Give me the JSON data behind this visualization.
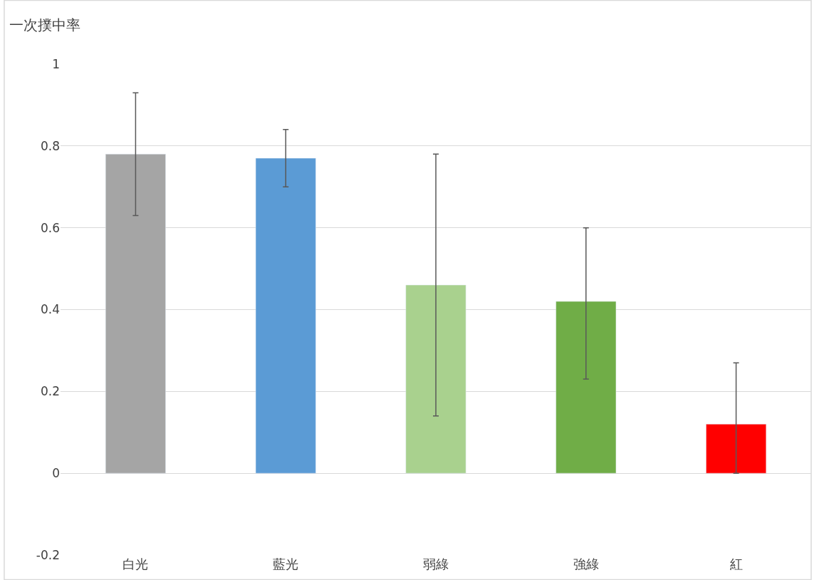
{
  "chart_data": {
    "type": "bar",
    "ylabel": "一次撲中率",
    "categories": [
      "白光",
      "藍光",
      "弱綠",
      "強綠",
      "紅"
    ],
    "values": [
      0.78,
      0.77,
      0.46,
      0.42,
      0.12
    ],
    "colors": [
      "#a5a5a5",
      "#5b9bd5",
      "#a9d18e",
      "#70ad47",
      "#ff0000"
    ],
    "errors": [
      [
        0.63,
        0.93
      ],
      [
        0.7,
        0.84
      ],
      [
        0.14,
        0.78
      ],
      [
        0.23,
        0.6
      ],
      [
        0.0,
        0.27
      ]
    ],
    "ylim": [
      -0.2,
      1
    ],
    "yticks": [
      -0.2,
      0,
      0.2,
      0.4,
      0.6,
      0.8,
      1
    ],
    "grid": "y"
  }
}
